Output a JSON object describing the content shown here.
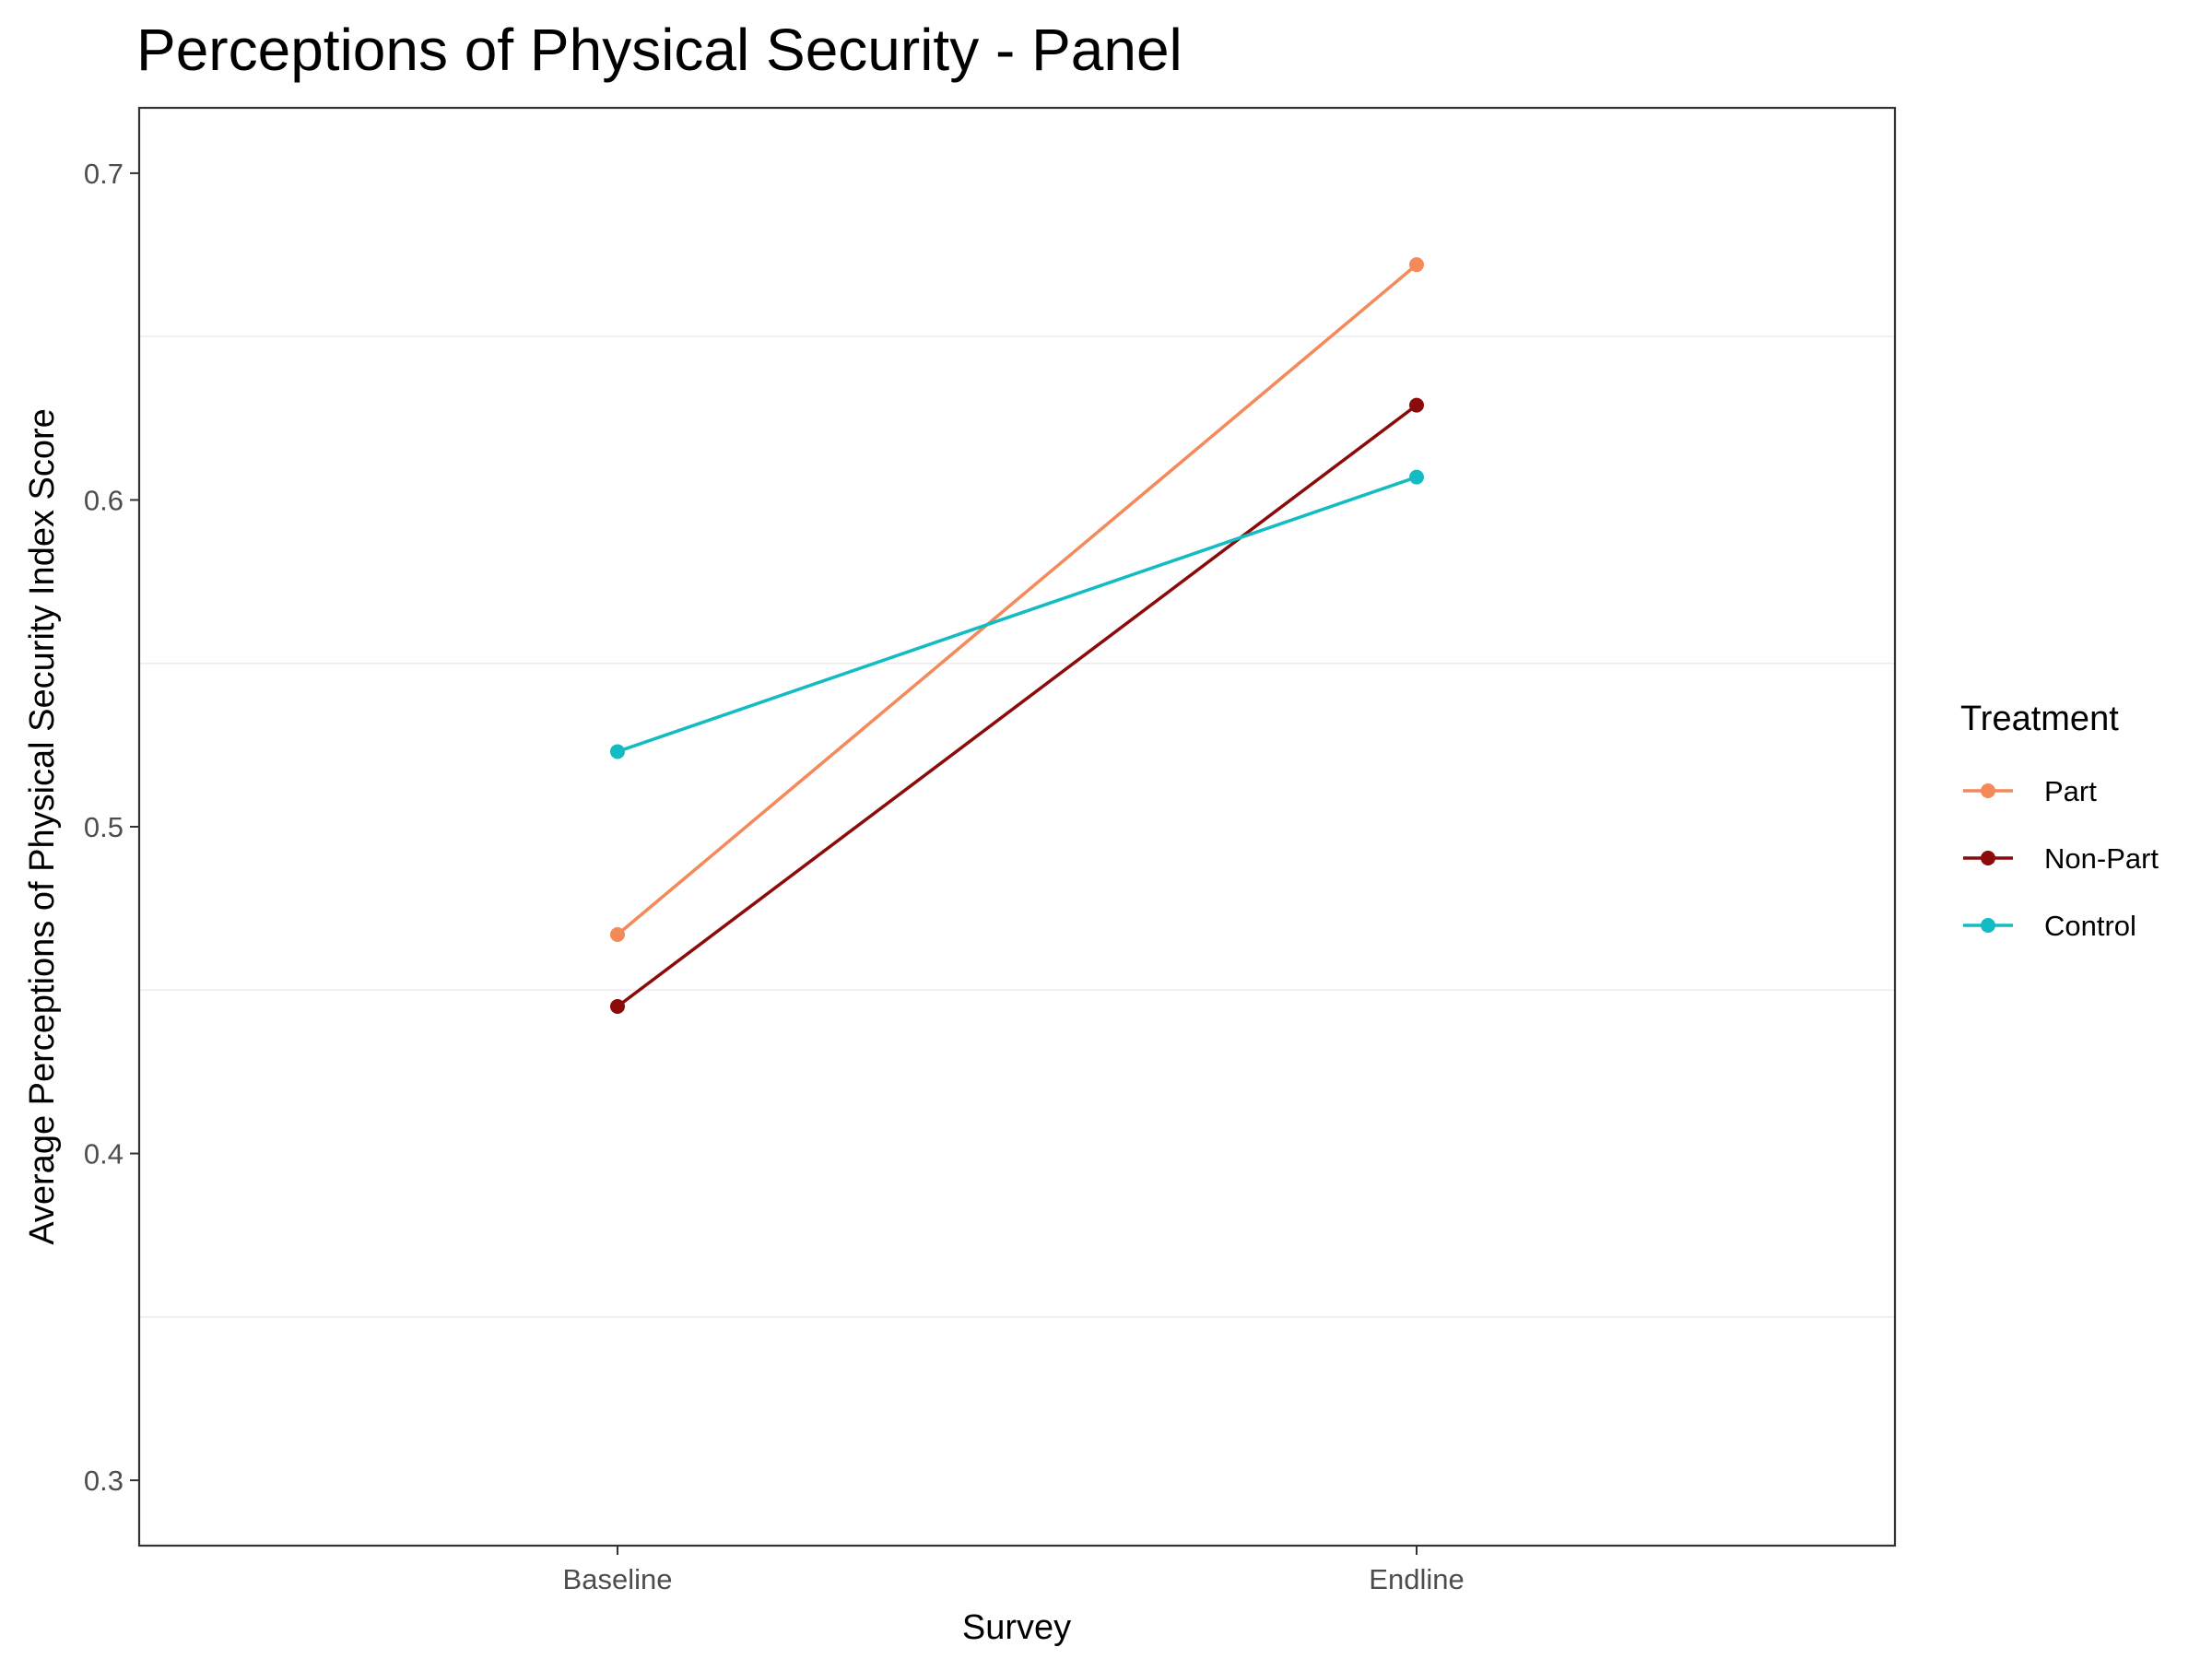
{
  "chart_data": {
    "type": "line",
    "title": "Perceptions of Physical Security - Panel",
    "xlabel": "Survey",
    "ylabel": "Average Perceptions of Physical Security Index Score",
    "categories": [
      "Baseline",
      "Endline"
    ],
    "ylim": [
      0.28,
      0.72
    ],
    "yticks": [
      0.3,
      0.4,
      0.5,
      0.6,
      0.7
    ],
    "ytick_labels": [
      "0.3",
      "0.4",
      "0.5",
      "0.6",
      "0.7"
    ],
    "minor_gridlines": [
      0.35,
      0.45,
      0.55,
      0.65
    ],
    "grid": true,
    "legend": {
      "title": "Treatment",
      "placement": "right"
    },
    "series": [
      {
        "name": "Part",
        "color": "#F4895A",
        "values": [
          0.467,
          0.672
        ]
      },
      {
        "name": "Non-Part",
        "color": "#8B0A0A",
        "values": [
          0.445,
          0.629
        ]
      },
      {
        "name": "Control",
        "color": "#12BCC2",
        "values": [
          0.523,
          0.607
        ]
      }
    ]
  }
}
